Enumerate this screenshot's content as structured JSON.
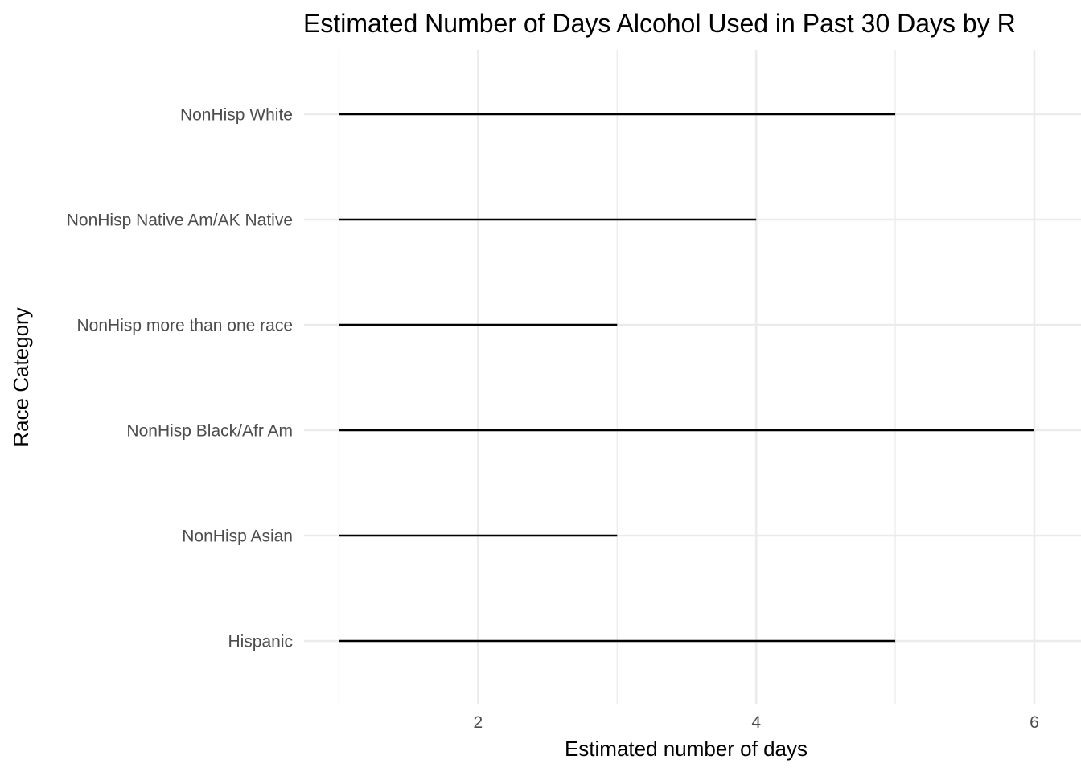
{
  "chart_data": {
    "type": "segment",
    "title": "Estimated Number of Days Alcohol Used in Past 30 Days by R",
    "xlabel": "Estimated number of days",
    "ylabel": "Race Category",
    "xlim": [
      1,
      6.2
    ],
    "x_ticks": [
      2,
      4,
      6
    ],
    "x_tick_labels": [
      "2",
      "4",
      "6"
    ],
    "grid": true,
    "categories": [
      "Hispanic",
      "NonHisp Asian",
      "NonHisp Black/Afr Am",
      "NonHisp more than one race",
      "NonHisp Native Am/AK Native",
      "NonHisp White"
    ],
    "segments": [
      {
        "category": "Hispanic",
        "start": 1,
        "end": 5
      },
      {
        "category": "NonHisp Asian",
        "start": 1,
        "end": 3
      },
      {
        "category": "NonHisp Black/Afr Am",
        "start": 1,
        "end": 6
      },
      {
        "category": "NonHisp more than one race",
        "start": 1,
        "end": 3
      },
      {
        "category": "NonHisp Native Am/AK Native",
        "start": 1,
        "end": 4
      },
      {
        "category": "NonHisp White",
        "start": 1,
        "end": 5
      }
    ]
  }
}
